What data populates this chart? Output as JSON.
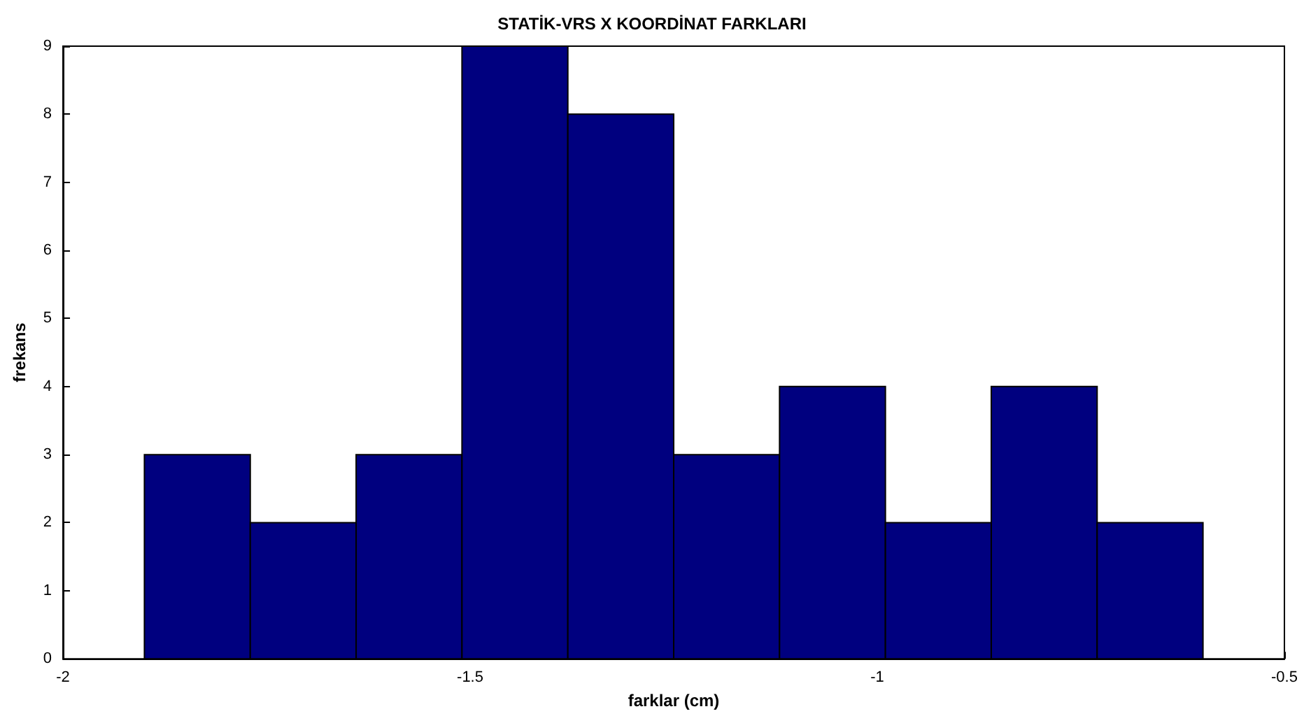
{
  "chart_data": {
    "type": "histogram",
    "title": "STATİK-VRS X KOORDİNAT FARKLARI",
    "xlabel": "farklar (cm)",
    "ylabel": "frekans",
    "bins": [
      -1.9,
      -1.77,
      -1.64,
      -1.51,
      -1.38,
      -1.25,
      -1.12,
      -0.99,
      -0.86,
      -0.73,
      -0.6
    ],
    "values": [
      3,
      2,
      3,
      9,
      8,
      3,
      4,
      2,
      4,
      2
    ],
    "color": "#00007f",
    "xlim": [
      -2,
      -0.5
    ],
    "xticks": [
      -2,
      -1.5,
      -1,
      -0.5
    ],
    "ylim": [
      0,
      9
    ],
    "yticks": [
      0,
      1,
      2,
      3,
      4,
      5,
      6,
      7,
      8,
      9
    ],
    "grid": false
  }
}
